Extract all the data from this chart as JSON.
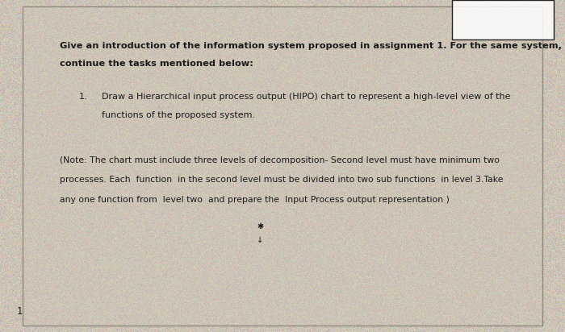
{
  "page_bg": "#c8c0b0",
  "text_color": "#1a1a1a",
  "title_line1": "Give an introduction of the information system proposed in assignment 1. For the same system,",
  "title_line2": "continue the tasks mentioned below:",
  "item_number": "1.",
  "item_line1": "Draw a Hierarchical input process output (HIPO) chart to represent a high-level view of the",
  "item_line2": "functions of the proposed system.",
  "note_line1": "(Note: The chart must include three levels of decomposition- Second level must have minimum two",
  "note_line2": "processes. Each  function  in the second level must be divided into two sub functions  in level 3.Take",
  "note_line3": "any one function from  level two  and prepare the  Input Process output representation )",
  "page_number": "1",
  "title_fontsize": 8.2,
  "body_fontsize": 8.0,
  "note_fontsize": 7.8,
  "fig_width": 7.0,
  "fig_height": 4.12,
  "dpi": 100
}
